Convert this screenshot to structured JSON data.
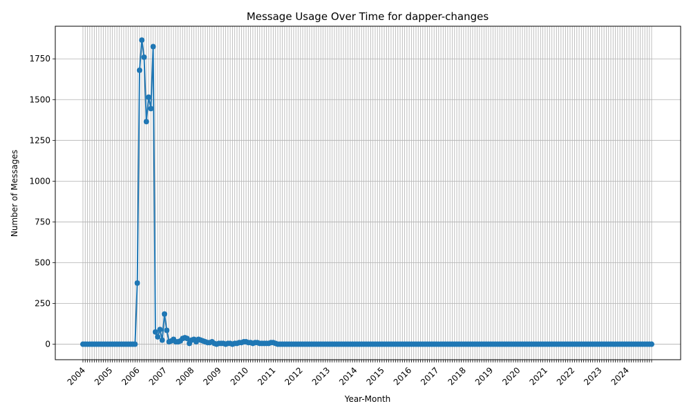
{
  "chart_data": {
    "type": "line",
    "title": "Message Usage Over Time for dapper-changes",
    "xlabel": "Year-Month",
    "ylabel": "Number of Messages",
    "ylim": [
      -95,
      1950
    ],
    "yticks": [
      0,
      250,
      500,
      750,
      1000,
      1250,
      1500,
      1750
    ],
    "grid": true,
    "color": "#1f77b4",
    "start_month": "2004-01",
    "year_labels": [
      "2004",
      "2005",
      "2006",
      "2007",
      "2008",
      "2009",
      "2010",
      "2011",
      "2012",
      "2013",
      "2014",
      "2015",
      "2016",
      "2017",
      "2018",
      "2019",
      "2020",
      "2021",
      "2022",
      "2023",
      "2024"
    ],
    "series": [
      {
        "values": [
          0,
          0,
          0,
          0,
          0,
          0,
          0,
          0,
          0,
          0,
          0,
          0,
          0,
          0,
          0,
          0,
          0,
          0,
          0,
          0,
          0,
          0,
          0,
          0,
          375,
          1680,
          1865,
          1760,
          1365,
          1515,
          1445,
          1825,
          75,
          45,
          90,
          25,
          185,
          85,
          15,
          20,
          30,
          15,
          15,
          20,
          35,
          40,
          35,
          5,
          25,
          30,
          15,
          30,
          25,
          20,
          15,
          10,
          10,
          15,
          5,
          0,
          5,
          5,
          5,
          0,
          5,
          5,
          0,
          5,
          5,
          10,
          10,
          15,
          15,
          10,
          10,
          5,
          10,
          10,
          5,
          5,
          5,
          5,
          5,
          10,
          10,
          5,
          0,
          0,
          0,
          0,
          0,
          0,
          0,
          0,
          0,
          0,
          0,
          0,
          0,
          0,
          0,
          0,
          0,
          0,
          0,
          0,
          0,
          0,
          0,
          0,
          0,
          0,
          0,
          0,
          0,
          0,
          0,
          0,
          0,
          0,
          0,
          0,
          0,
          0,
          0,
          0,
          0,
          0,
          0,
          0,
          0,
          0,
          0,
          0,
          0,
          0,
          0,
          0,
          0,
          0,
          0,
          0,
          0,
          0,
          0,
          0,
          0,
          0,
          0,
          0,
          0,
          0,
          0,
          0,
          0,
          0,
          0,
          0,
          0,
          0,
          0,
          0,
          0,
          0,
          0,
          0,
          0,
          0,
          0,
          0,
          0,
          0,
          0,
          0,
          0,
          0,
          0,
          0,
          0,
          0,
          0,
          0,
          0,
          0,
          0,
          0,
          0,
          0,
          0,
          0,
          0,
          0,
          0,
          0,
          0,
          0,
          0,
          0,
          0,
          0,
          0,
          0,
          0,
          0,
          0,
          0,
          0,
          0,
          0,
          0,
          0,
          0,
          0,
          0,
          0,
          0,
          0,
          0,
          0,
          0,
          0,
          0,
          0,
          0,
          0,
          0,
          0,
          0,
          0,
          0,
          0,
          0,
          0,
          0,
          0,
          0,
          0,
          0,
          0,
          0,
          0,
          0,
          0,
          0,
          0,
          0,
          0,
          0,
          0,
          0,
          0,
          0
        ]
      }
    ]
  }
}
